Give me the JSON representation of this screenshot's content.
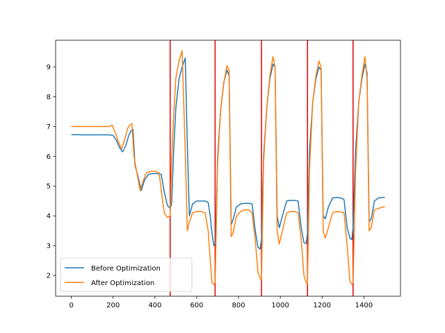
{
  "chart_data": {
    "type": "line",
    "title": "",
    "xlabel": "",
    "ylabel": "",
    "xlim": [
      -75,
      1575
    ],
    "ylim": [
      1.3,
      9.9
    ],
    "xticks": [
      0,
      200,
      400,
      600,
      800,
      1000,
      1200,
      1400
    ],
    "yticks": [
      2,
      3,
      4,
      5,
      6,
      7,
      8,
      9
    ],
    "grid": false,
    "legend_position": "lower-left",
    "vlines": {
      "color": "#e00000",
      "x": [
        473,
        688,
        910,
        1130,
        1348
      ]
    },
    "series": [
      {
        "name": "Before Optimization",
        "color": "#1f77b4",
        "x": [
          0,
          50,
          100,
          150,
          180,
          200,
          215,
          230,
          245,
          260,
          275,
          285,
          295,
          305,
          320,
          335,
          350,
          370,
          390,
          410,
          430,
          445,
          460,
          473,
          480,
          490,
          500,
          515,
          530,
          545,
          555,
          565,
          580,
          600,
          620,
          640,
          655,
          665,
          673,
          682,
          690,
          700,
          715,
          730,
          745,
          755,
          765,
          775,
          790,
          810,
          830,
          850,
          865,
          880,
          893,
          903,
          910,
          920,
          935,
          950,
          965,
          975,
          985,
          995,
          1010,
          1030,
          1050,
          1070,
          1085,
          1100,
          1113,
          1124,
          1130,
          1140,
          1155,
          1170,
          1185,
          1195,
          1205,
          1215,
          1230,
          1250,
          1270,
          1290,
          1305,
          1320,
          1333,
          1342,
          1348,
          1360,
          1375,
          1390,
          1405,
          1415,
          1425,
          1435,
          1450,
          1470,
          1490,
          1500
        ],
        "y": [
          6.73,
          6.72,
          6.72,
          6.72,
          6.72,
          6.7,
          6.55,
          6.3,
          6.15,
          6.35,
          6.7,
          6.85,
          6.9,
          5.7,
          5.3,
          4.85,
          5.2,
          5.4,
          5.42,
          5.42,
          5.4,
          4.8,
          4.35,
          4.25,
          4.4,
          6.2,
          7.6,
          8.6,
          9.0,
          9.3,
          6.4,
          4.0,
          4.4,
          4.5,
          4.5,
          4.5,
          4.45,
          4.0,
          3.4,
          3.0,
          3.1,
          6.0,
          7.6,
          8.5,
          8.9,
          8.7,
          3.7,
          3.9,
          4.3,
          4.4,
          4.42,
          4.42,
          4.4,
          3.5,
          2.95,
          2.88,
          3.2,
          6.0,
          7.6,
          8.6,
          9.1,
          9.0,
          4.0,
          3.6,
          4.0,
          4.5,
          4.52,
          4.52,
          4.5,
          3.6,
          3.1,
          3.07,
          3.4,
          6.2,
          7.8,
          8.6,
          9.0,
          8.9,
          4.0,
          3.9,
          4.3,
          4.6,
          4.62,
          4.6,
          4.55,
          3.6,
          3.25,
          3.2,
          3.6,
          6.2,
          7.8,
          8.6,
          9.1,
          8.8,
          3.8,
          3.9,
          4.5,
          4.6,
          4.62,
          4.62
        ]
      },
      {
        "name": "After Optimization",
        "color": "#ff7f0e",
        "x": [
          0,
          50,
          100,
          150,
          180,
          195,
          210,
          225,
          240,
          255,
          270,
          280,
          290,
          300,
          315,
          330,
          345,
          360,
          380,
          400,
          420,
          435,
          445,
          460,
          473,
          480,
          490,
          500,
          515,
          530,
          545,
          555,
          565,
          580,
          600,
          620,
          640,
          655,
          665,
          673,
          682,
          688,
          700,
          715,
          730,
          745,
          755,
          765,
          775,
          790,
          810,
          830,
          850,
          865,
          880,
          893,
          903,
          910,
          920,
          935,
          950,
          965,
          975,
          985,
          995,
          1010,
          1030,
          1050,
          1070,
          1085,
          1100,
          1113,
          1124,
          1130,
          1140,
          1155,
          1170,
          1185,
          1195,
          1205,
          1215,
          1230,
          1250,
          1270,
          1290,
          1305,
          1320,
          1333,
          1342,
          1348,
          1360,
          1375,
          1390,
          1405,
          1415,
          1425,
          1435,
          1450,
          1470,
          1490,
          1500
        ],
        "y": [
          7.0,
          7.0,
          7.0,
          7.0,
          7.0,
          7.05,
          6.8,
          6.5,
          6.25,
          6.55,
          6.95,
          7.05,
          7.1,
          6.0,
          5.4,
          4.85,
          5.2,
          5.45,
          5.5,
          5.5,
          5.45,
          4.6,
          4.1,
          3.95,
          4.0,
          5.8,
          7.4,
          8.6,
          9.2,
          9.55,
          6.2,
          3.5,
          3.8,
          4.1,
          4.15,
          4.15,
          4.1,
          3.5,
          2.5,
          1.75,
          1.7,
          1.75,
          5.8,
          7.6,
          8.5,
          9.05,
          8.9,
          3.3,
          3.45,
          4.0,
          4.15,
          4.2,
          4.2,
          4.1,
          3.2,
          2.1,
          1.9,
          1.85,
          5.8,
          7.6,
          8.7,
          9.35,
          9.0,
          3.5,
          3.05,
          3.5,
          4.1,
          4.15,
          4.15,
          4.1,
          3.2,
          2.0,
          1.75,
          1.7,
          5.6,
          7.8,
          8.7,
          9.2,
          9.0,
          3.5,
          3.25,
          3.6,
          4.1,
          4.15,
          4.13,
          4.1,
          3.0,
          1.8,
          1.7,
          1.75,
          5.5,
          7.8,
          8.7,
          9.35,
          8.6,
          3.5,
          3.6,
          4.2,
          4.25,
          4.3,
          4.3
        ]
      }
    ]
  }
}
